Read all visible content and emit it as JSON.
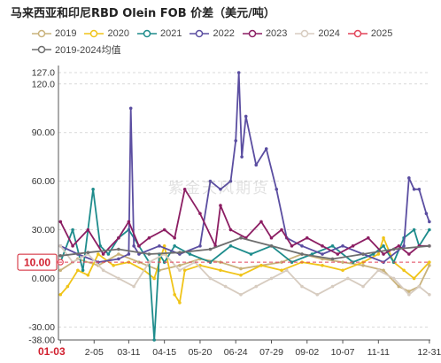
{
  "title": "马来西亚和印尼RBD Olein FOB 价差（美元/吨）",
  "watermark": "紫金天风期货",
  "chart_data": {
    "type": "line",
    "title": "马来西亚和印尼RBD Olein FOB 价差（美元/吨）",
    "xlabel": "",
    "ylabel": "",
    "ylim": [
      -38,
      127
    ],
    "y_ticks": [
      -38,
      -30,
      0,
      30,
      60,
      90,
      120,
      127
    ],
    "y_tick_labels": [
      "-38.00",
      "-30.00",
      "0.000",
      "30.00",
      "60.00",
      "90.00",
      "120.0",
      "127.0"
    ],
    "x_tick_labels": [
      "01-03",
      "2-05",
      "03-11",
      "04-15",
      "05-20",
      "06-24",
      "07-29",
      "09-02",
      "10-07",
      "11-11",
      "12-31"
    ],
    "x_tick_days": [
      3,
      36,
      70,
      105,
      140,
      175,
      210,
      245,
      280,
      315,
      365
    ],
    "highlight_x": "01-03",
    "highlight_y": "10.00",
    "highlight_y_value": 10,
    "legend_position": "top",
    "grid_y": true,
    "series": [
      {
        "name": "2019",
        "color": "#c9b27b",
        "x": [
          3,
          20,
          40,
          60,
          80,
          100,
          120,
          140,
          160,
          180,
          200,
          220,
          240,
          260,
          280,
          300,
          320,
          335,
          345,
          355,
          365
        ],
        "values": [
          5,
          12,
          8,
          15,
          10,
          5,
          8,
          12,
          10,
          6,
          8,
          10,
          15,
          12,
          10,
          8,
          5,
          -5,
          -8,
          -5,
          8
        ]
      },
      {
        "name": "2020",
        "color": "#f0c419",
        "x": [
          3,
          10,
          20,
          30,
          40,
          55,
          70,
          85,
          95,
          105,
          115,
          120,
          125,
          140,
          160,
          180,
          200,
          220,
          240,
          260,
          280,
          300,
          315,
          320,
          330,
          340,
          350,
          365
        ],
        "values": [
          -10,
          -5,
          5,
          2,
          15,
          8,
          10,
          5,
          0,
          20,
          -10,
          -15,
          5,
          8,
          5,
          2,
          8,
          5,
          10,
          8,
          5,
          10,
          15,
          25,
          10,
          5,
          0,
          10
        ]
      },
      {
        "name": "2021",
        "color": "#1e8c8c",
        "x": [
          3,
          15,
          25,
          35,
          42,
          50,
          60,
          70,
          80,
          90,
          95,
          100,
          105,
          115,
          130,
          150,
          170,
          190,
          210,
          230,
          250,
          270,
          290,
          310,
          320,
          330,
          340,
          350,
          355,
          365
        ],
        "values": [
          10,
          30,
          5,
          55,
          20,
          15,
          25,
          30,
          20,
          10,
          -38,
          15,
          10,
          20,
          15,
          10,
          20,
          15,
          20,
          10,
          15,
          20,
          10,
          15,
          20,
          10,
          25,
          30,
          20,
          30
        ]
      },
      {
        "name": "2022",
        "color": "#5b4ea1",
        "x": [
          3,
          20,
          40,
          60,
          70,
          72,
          75,
          80,
          100,
          120,
          140,
          150,
          160,
          170,
          175,
          178,
          181,
          185,
          195,
          205,
          215,
          225,
          240,
          260,
          280,
          300,
          320,
          340,
          345,
          350,
          355,
          362,
          365
        ],
        "values": [
          20,
          15,
          10,
          12,
          15,
          105,
          20,
          15,
          20,
          15,
          20,
          60,
          55,
          60,
          85,
          127,
          75,
          100,
          70,
          80,
          55,
          25,
          20,
          15,
          20,
          15,
          10,
          20,
          62,
          55,
          55,
          40,
          35
        ]
      },
      {
        "name": "2023",
        "color": "#8c1e63",
        "x": [
          3,
          15,
          30,
          45,
          60,
          70,
          80,
          90,
          105,
          115,
          125,
          140,
          155,
          160,
          170,
          185,
          200,
          210,
          220,
          230,
          245,
          260,
          275,
          290,
          305,
          320,
          335,
          345,
          355,
          365
        ],
        "values": [
          35,
          20,
          30,
          15,
          25,
          35,
          20,
          25,
          30,
          25,
          55,
          40,
          20,
          45,
          30,
          25,
          35,
          25,
          30,
          20,
          25,
          20,
          15,
          20,
          25,
          15,
          20,
          15,
          20,
          20
        ]
      },
      {
        "name": "2024",
        "color": "#d7ccc0",
        "x": [
          3,
          15,
          30,
          45,
          60,
          75,
          90,
          105,
          120,
          135,
          150,
          165,
          180,
          195,
          210,
          225,
          240,
          255,
          270,
          285,
          300,
          315,
          330,
          345,
          355,
          365
        ],
        "values": [
          20,
          10,
          15,
          5,
          0,
          -5,
          10,
          15,
          5,
          10,
          0,
          -5,
          -10,
          -5,
          0,
          5,
          -5,
          -10,
          -5,
          0,
          -5,
          5,
          0,
          -10,
          -5,
          -10
        ]
      },
      {
        "name": "2025",
        "color": "#e2455a",
        "x": [
          3
        ],
        "values": [
          10
        ]
      },
      {
        "name": "2019-2024均值",
        "color": "#6e6e6e",
        "x": [
          3,
          30,
          60,
          90,
          120,
          150,
          180,
          210,
          240,
          270,
          300,
          330,
          365
        ],
        "values": [
          14,
          16,
          18,
          15,
          16,
          18,
          25,
          20,
          15,
          12,
          15,
          18,
          20
        ]
      }
    ]
  }
}
